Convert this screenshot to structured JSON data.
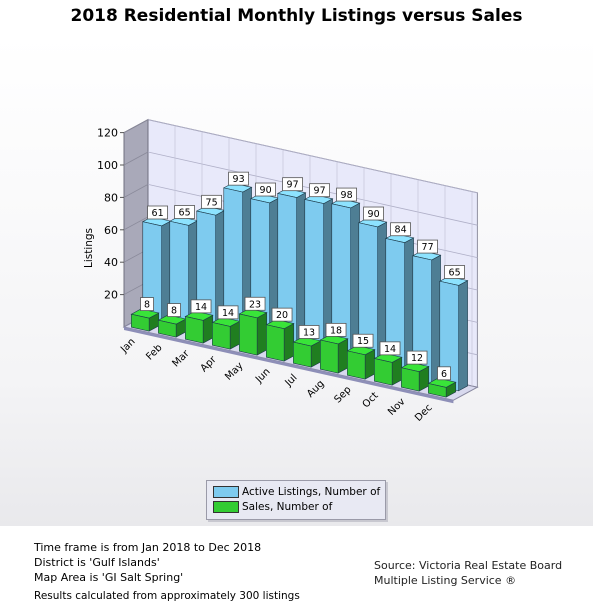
{
  "title": "2018 Residential Monthly Listings versus Sales",
  "chart_data": {
    "type": "bar",
    "title": "2018 Residential Monthly Listings versus Sales",
    "ylabel": "Listings",
    "xlabel": "",
    "ylim": [
      0,
      120
    ],
    "yticks": [
      20,
      40,
      60,
      80,
      100,
      120
    ],
    "categories": [
      "Jan",
      "Feb",
      "Mar",
      "Apr",
      "May",
      "Jun",
      "Jul",
      "Aug",
      "Sep",
      "Oct",
      "Nov",
      "Dec"
    ],
    "series": [
      {
        "name": "Active Listings, Number of",
        "color": "#7ecbef",
        "values": [
          61,
          65,
          75,
          93,
          90,
          97,
          97,
          98,
          90,
          84,
          77,
          65
        ]
      },
      {
        "name": "Sales, Number of",
        "color": "#33cc33",
        "values": [
          8,
          8,
          14,
          14,
          23,
          20,
          13,
          18,
          15,
          14,
          12,
          6
        ]
      }
    ],
    "grid": true,
    "style": "3d",
    "legend_position": "bottom"
  },
  "footer": {
    "time_frame": "Time frame is from Jan 2018 to Dec 2018",
    "district": "District is 'Gulf Islands'",
    "map_area": "Map Area is 'GI Salt Spring'",
    "results": "Results calculated from approximately 300 listings",
    "source_line1": "Source: Victoria Real Estate Board",
    "source_line2": "Multiple Listing Service ®"
  }
}
